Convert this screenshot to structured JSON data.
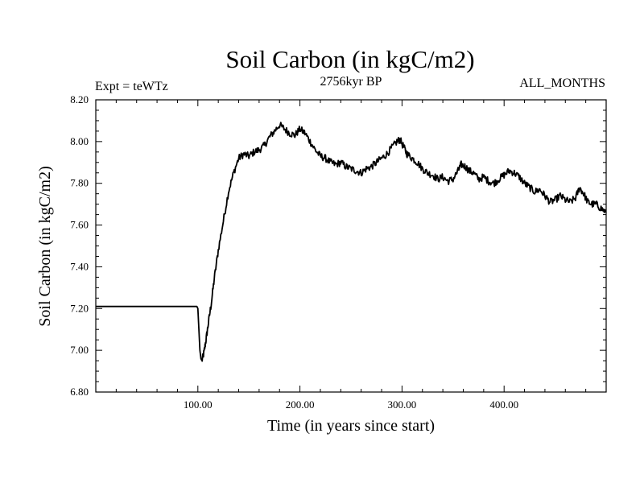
{
  "chart_data": {
    "type": "line",
    "title": "Soil Carbon (in kgC/m2)",
    "subtitle_left": "Expt = teWTz",
    "subtitle_center": "2756kyr BP",
    "subtitle_right": "ALL_MONTHS",
    "xlabel": "Time (in years since start)",
    "ylabel": "Soil Carbon (in kgC/m2)",
    "xlim": [
      0,
      500
    ],
    "ylim": [
      6.8,
      8.2
    ],
    "x_ticks": [
      100,
      200,
      300,
      400
    ],
    "x_tick_labels": [
      "100.00",
      "200.00",
      "300.00",
      "400.00"
    ],
    "y_ticks": [
      6.8,
      7.0,
      7.2,
      7.4,
      7.6,
      7.8,
      8.0,
      8.2
    ],
    "y_tick_labels": [
      "6.80",
      "7.00",
      "7.20",
      "7.40",
      "7.60",
      "7.80",
      "8.00",
      "8.20"
    ],
    "grid": false,
    "series": [
      {
        "name": "Soil Carbon",
        "color": "#000000",
        "x": [
          0,
          99,
          100,
          101,
          102,
          103,
          104,
          106,
          108,
          110,
          113,
          116,
          120,
          125,
          130,
          135,
          140,
          145,
          150,
          155,
          160,
          165,
          170,
          175,
          180,
          185,
          190,
          195,
          200,
          205,
          210,
          215,
          220,
          225,
          230,
          235,
          240,
          245,
          250,
          255,
          260,
          265,
          270,
          275,
          280,
          285,
          290,
          295,
          298,
          302,
          305,
          310,
          315,
          320,
          325,
          330,
          335,
          340,
          345,
          350,
          355,
          358,
          362,
          366,
          370,
          375,
          380,
          385,
          390,
          395,
          400,
          405,
          410,
          415,
          420,
          425,
          430,
          435,
          440,
          445,
          450,
          455,
          460,
          465,
          470,
          474,
          478,
          482,
          486,
          490,
          495,
          500
        ],
        "y": [
          7.21,
          7.21,
          7.2,
          7.1,
          7.0,
          6.96,
          6.95,
          6.99,
          7.05,
          7.12,
          7.22,
          7.34,
          7.48,
          7.62,
          7.76,
          7.85,
          7.92,
          7.94,
          7.93,
          7.95,
          7.96,
          7.98,
          8.02,
          8.05,
          8.08,
          8.06,
          8.04,
          8.03,
          8.06,
          8.04,
          8.0,
          7.96,
          7.93,
          7.92,
          7.9,
          7.89,
          7.9,
          7.88,
          7.87,
          7.86,
          7.85,
          7.87,
          7.88,
          7.9,
          7.92,
          7.94,
          7.97,
          8.0,
          8.01,
          7.97,
          7.94,
          7.92,
          7.9,
          7.87,
          7.85,
          7.84,
          7.82,
          7.83,
          7.81,
          7.82,
          7.86,
          7.89,
          7.88,
          7.86,
          7.85,
          7.82,
          7.83,
          7.81,
          7.8,
          7.82,
          7.84,
          7.86,
          7.85,
          7.83,
          7.8,
          7.78,
          7.76,
          7.77,
          7.74,
          7.71,
          7.72,
          7.74,
          7.72,
          7.71,
          7.73,
          7.78,
          7.75,
          7.71,
          7.7,
          7.7,
          7.68,
          7.66
        ]
      }
    ]
  }
}
